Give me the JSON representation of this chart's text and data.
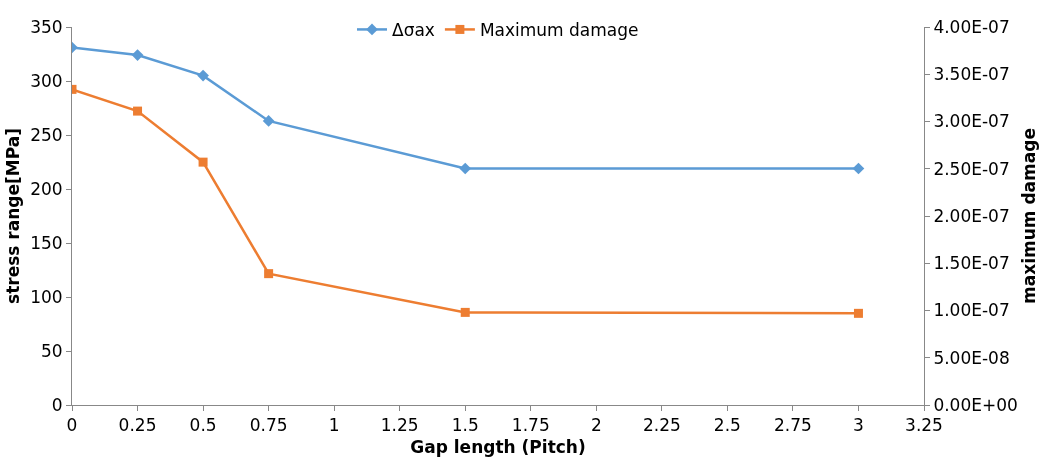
{
  "chart_data": {
    "type": "line",
    "xlabel": "Gap length (Pitch)",
    "ylabel": "stress range[MPa]",
    "y2label": "maximum damage",
    "xlim": [
      0,
      3.25
    ],
    "xticks": [
      0,
      0.25,
      0.5,
      0.75,
      1,
      1.25,
      1.5,
      1.75,
      2,
      2.25,
      2.5,
      2.75,
      3,
      3.25
    ],
    "ylim": [
      0,
      350
    ],
    "yticks": [
      0,
      50,
      100,
      150,
      200,
      250,
      300,
      350
    ],
    "y2lim": [
      0,
      4e-07
    ],
    "y2ticks": [
      {
        "value": 0,
        "label": "0.00E+00"
      },
      {
        "value": 5e-08,
        "label": "5.00E-08"
      },
      {
        "value": 1e-07,
        "label": "1.00E-07"
      },
      {
        "value": 1.5e-07,
        "label": "1.50E-07"
      },
      {
        "value": 2e-07,
        "label": "2.00E-07"
      },
      {
        "value": 2.5e-07,
        "label": "2.50E-07"
      },
      {
        "value": 3e-07,
        "label": "3.00E-07"
      },
      {
        "value": 3.5e-07,
        "label": "3.50E-07"
      },
      {
        "value": 4e-07,
        "label": "4.00E-07"
      }
    ],
    "x": [
      0,
      0.25,
      0.5,
      0.75,
      1.5,
      3
    ],
    "legend": "top",
    "series": [
      {
        "name": "Δσax",
        "color": "#5b9bd5",
        "marker": "diamond",
        "values": [
          331,
          324,
          305,
          263,
          219,
          219
        ]
      },
      {
        "name": "Maximum damage",
        "color": "#ed7d31",
        "marker": "square",
        "axis": "y2",
        "values": [
          3.34e-07,
          3.11e-07,
          2.57e-07,
          1.39e-07,
          9.8e-08,
          9.7e-08
        ]
      }
    ]
  }
}
